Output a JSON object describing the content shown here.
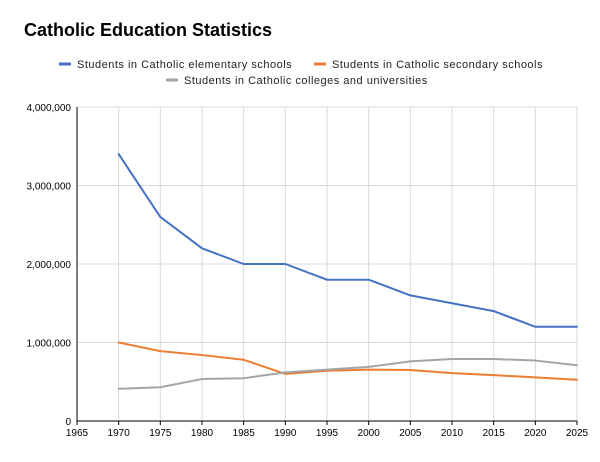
{
  "chart_data": {
    "type": "line",
    "title": "Catholic Education Statistics",
    "xlabel": "",
    "ylabel": "",
    "xlim": [
      1965,
      2025
    ],
    "ylim": [
      0,
      4000000
    ],
    "x_ticks": [
      1965,
      1970,
      1975,
      1980,
      1985,
      1990,
      1995,
      2000,
      2005,
      2010,
      2015,
      2020,
      2025
    ],
    "y_ticks": [
      0,
      1000000,
      2000000,
      3000000,
      4000000
    ],
    "y_tick_labels": [
      "0",
      "1,000,000",
      "2,000,000",
      "3,000,000",
      "4,000,000"
    ],
    "grid": true,
    "legend_position": "top",
    "x": [
      1970,
      1975,
      1980,
      1985,
      1990,
      1995,
      2000,
      2005,
      2010,
      2015,
      2020,
      2025
    ],
    "series": [
      {
        "name": "Students in Catholic elementary schools",
        "color": "#4472C4",
        "values": [
          3400000,
          2600000,
          2200000,
          2000000,
          2000000,
          1800000,
          1800000,
          1600000,
          1500000,
          1400000,
          1200000,
          1200000
        ]
      },
      {
        "name": "Students in Catholic secondary schools",
        "color": "#ED7D31",
        "values": [
          1000000,
          890000,
          840000,
          780000,
          600000,
          640000,
          655000,
          650000,
          610000,
          585000,
          555000,
          525000
        ]
      },
      {
        "name": "Students in Catholic colleges and universities",
        "color": "#A5A5A5",
        "values": [
          410000,
          430000,
          535000,
          545000,
          620000,
          655000,
          690000,
          760000,
          790000,
          790000,
          770000,
          710000
        ]
      }
    ]
  }
}
